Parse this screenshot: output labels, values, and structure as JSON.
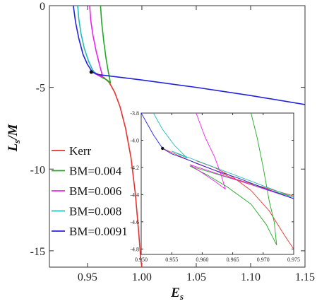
{
  "chart_data": [
    {
      "type": "line",
      "xlabel": "E",
      "xlabel_sub": "s",
      "ylabel": "L",
      "ylabel_sub": "s",
      "ylabel_suffix": "/M",
      "xlim": [
        0.915,
        1.15
      ],
      "ylim": [
        -16,
        0
      ],
      "xticks": [
        {
          "value": 0.95,
          "label": "0.95"
        },
        {
          "value": 1.0,
          "label": "1.00"
        },
        {
          "value": 1.05,
          "label": "1.05"
        },
        {
          "value": 1.1,
          "label": "1.10"
        },
        {
          "value": 1.15,
          "label": "1.15"
        }
      ],
      "yticks": [
        {
          "value": 0,
          "label": "0"
        },
        {
          "value": -5,
          "label": "-5"
        },
        {
          "value": -10,
          "label": "-10"
        },
        {
          "value": -15,
          "label": "-15"
        }
      ],
      "legend_position": "bottom-left",
      "series": [
        {
          "name": "Kerr",
          "color": "#e8322e",
          "points": [
            [
              0.9545,
              -4.06
            ],
            [
              0.96,
              -4.2
            ],
            [
              0.965,
              -4.4
            ],
            [
              0.97,
              -4.7
            ],
            [
              0.975,
              -5.3
            ],
            [
              0.98,
              -6.2
            ],
            [
              0.985,
              -7.5
            ],
            [
              0.99,
              -9.3
            ],
            [
              0.994,
              -11.5
            ],
            [
              0.997,
              -13.8
            ],
            [
              0.999,
              -15.5
            ],
            [
              1.0,
              -16.0
            ]
          ]
        },
        {
          "name": "BM=0.004",
          "color": "#22aa22",
          "points": [
            [
              0.962,
              0.0
            ],
            [
              0.963,
              -1.0
            ],
            [
              0.965,
              -2.2
            ],
            [
              0.967,
              -3.2
            ],
            [
              0.969,
              -4.0
            ],
            [
              0.9705,
              -4.5
            ],
            [
              0.971,
              -4.72
            ],
            [
              0.968,
              -4.55
            ],
            [
              0.963,
              -4.38
            ],
            [
              0.959,
              -4.22
            ],
            [
              0.9545,
              -4.06
            ]
          ]
        },
        {
          "name": "BM=0.006",
          "color": "#ee22ee",
          "points": [
            [
              0.952,
              0.0
            ],
            [
              0.953,
              -0.9
            ],
            [
              0.955,
              -1.8
            ],
            [
              0.958,
              -2.8
            ],
            [
              0.961,
              -3.6
            ],
            [
              0.963,
              -4.1
            ],
            [
              0.9638,
              -4.38
            ],
            [
              0.961,
              -4.3
            ],
            [
              0.958,
              -4.2
            ],
            [
              0.9545,
              -4.06
            ]
          ]
        },
        {
          "name": "BM=0.008",
          "color": "#22bbbb",
          "points": [
            [
              0.941,
              0.0
            ],
            [
              0.942,
              -0.8
            ],
            [
              0.944,
              -1.7
            ],
            [
              0.947,
              -2.6
            ],
            [
              0.951,
              -3.4
            ],
            [
              0.9545,
              -3.9
            ],
            [
              0.956,
              -4.05
            ],
            [
              0.9575,
              -4.12
            ],
            [
              0.956,
              -4.1
            ],
            [
              0.9545,
              -4.06
            ]
          ]
        },
        {
          "name": "BM=0.0091",
          "color": "#2222dd",
          "points": [
            [
              0.937,
              0.0
            ],
            [
              0.939,
              -1.0
            ],
            [
              0.942,
              -2.0
            ],
            [
              0.946,
              -3.0
            ],
            [
              0.95,
              -3.6
            ],
            [
              0.9545,
              -4.06
            ],
            [
              0.96,
              -4.22
            ],
            [
              1.0,
              -4.55
            ],
            [
              1.05,
              -5.0
            ],
            [
              1.1,
              -5.5
            ],
            [
              1.15,
              -6.05
            ]
          ]
        }
      ],
      "marker": {
        "x": 0.9535,
        "y": -4.06,
        "color": "#111111"
      }
    },
    {
      "type": "line",
      "role": "inset",
      "xlim": [
        0.95,
        0.975
      ],
      "ylim": [
        -4.84,
        -3.8
      ],
      "xticks": [
        {
          "value": 0.95,
          "label": "0.950"
        },
        {
          "value": 0.955,
          "label": "0.955"
        },
        {
          "value": 0.96,
          "label": "0.960"
        },
        {
          "value": 0.965,
          "label": "0.965"
        },
        {
          "value": 0.97,
          "label": "0.970"
        },
        {
          "value": 0.975,
          "label": "0.975"
        }
      ],
      "yticks": [
        {
          "value": -3.8,
          "label": "-3.8"
        },
        {
          "value": -4.0,
          "label": "-4.0"
        },
        {
          "value": -4.2,
          "label": "-4.2"
        },
        {
          "value": -4.4,
          "label": "-4.4"
        },
        {
          "value": -4.6,
          "label": "-4.6"
        },
        {
          "value": -4.8,
          "label": "-4.8"
        }
      ],
      "series": [
        {
          "name": "Kerr",
          "color": "#e8322e",
          "points": [
            [
              0.9535,
              -4.06
            ],
            [
              0.956,
              -4.11
            ],
            [
              0.959,
              -4.17
            ],
            [
              0.962,
              -4.22
            ],
            [
              0.965,
              -4.28
            ],
            [
              0.975,
              -4.41
            ]
          ],
          "branch": [
            [
              0.959,
              -4.15
            ],
            [
              0.962,
              -4.2
            ],
            [
              0.965,
              -4.27
            ],
            [
              0.968,
              -4.37
            ],
            [
              0.971,
              -4.52
            ],
            [
              0.9735,
              -4.7
            ],
            [
              0.975,
              -4.8
            ]
          ]
        },
        {
          "name": "BM=0.004",
          "color": "#22aa22",
          "points": [
            [
              0.968,
              -3.8
            ],
            [
              0.969,
              -3.98
            ],
            [
              0.97,
              -4.2
            ],
            [
              0.971,
              -4.45
            ],
            [
              0.9718,
              -4.6
            ],
            [
              0.9722,
              -4.77
            ],
            [
              0.9705,
              -4.62
            ],
            [
              0.968,
              -4.47
            ],
            [
              0.964,
              -4.34
            ],
            [
              0.961,
              -4.26
            ],
            [
              0.958,
              -4.19
            ],
            [
              0.975,
              -4.42
            ]
          ]
        },
        {
          "name": "BM=0.006",
          "color": "#ee22ee",
          "points": [
            [
              0.959,
              -3.8
            ],
            [
              0.9605,
              -3.98
            ],
            [
              0.962,
              -4.12
            ],
            [
              0.963,
              -4.24
            ],
            [
              0.9638,
              -4.36
            ],
            [
              0.962,
              -4.3
            ],
            [
              0.96,
              -4.24
            ],
            [
              0.958,
              -4.18
            ],
            [
              0.975,
              -4.43
            ]
          ]
        },
        {
          "name": "BM=0.008",
          "color": "#22bbbb",
          "points": [
            [
              0.952,
              -3.8
            ],
            [
              0.9535,
              -3.92
            ],
            [
              0.9555,
              -4.04
            ],
            [
              0.9575,
              -4.13
            ],
            [
              0.9565,
              -4.11
            ],
            [
              0.955,
              -4.08
            ],
            [
              0.975,
              -4.42
            ]
          ]
        },
        {
          "name": "BM=0.0091",
          "color": "#2222dd",
          "points": [
            [
              0.95,
              -3.8
            ],
            [
              0.951,
              -3.88
            ],
            [
              0.952,
              -3.96
            ],
            [
              0.9535,
              -4.06
            ],
            [
              0.955,
              -4.1
            ],
            [
              0.958,
              -4.15
            ],
            [
              0.962,
              -4.22
            ],
            [
              0.966,
              -4.28
            ],
            [
              0.97,
              -4.35
            ],
            [
              0.975,
              -4.43
            ]
          ]
        }
      ],
      "marker": {
        "x": 0.9535,
        "y": -4.06,
        "color": "#111111"
      }
    }
  ]
}
